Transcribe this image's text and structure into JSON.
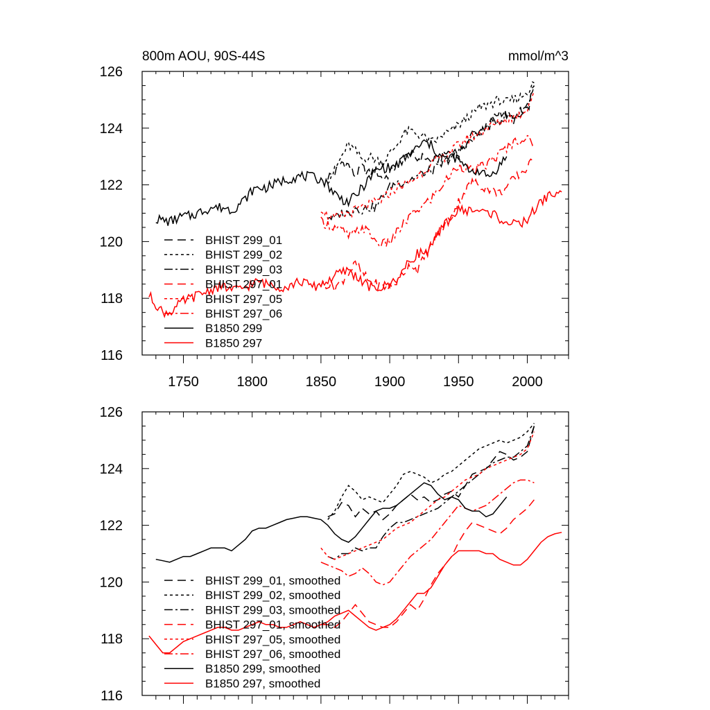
{
  "chart_data": [
    {
      "type": "line",
      "title": "800m AOU, 90S-44S",
      "units": "mmol/m^3",
      "xlim": [
        1720,
        2030
      ],
      "ylim": [
        116,
        126
      ],
      "xticks": [
        1750,
        1800,
        1850,
        1900,
        1950,
        2000
      ],
      "yticks": [
        116,
        118,
        120,
        122,
        124,
        126
      ],
      "xlabel": "",
      "ylabel": "",
      "legend_position": "bottom-left",
      "series": [
        {
          "name": "BHIST 299_01",
          "color": "#000000",
          "dash": "12,7",
          "x": [
            1855,
            1860,
            1865,
            1870,
            1875,
            1880,
            1885,
            1890,
            1895,
            1900,
            1905,
            1910,
            1915,
            1920,
            1925,
            1930,
            1935,
            1940,
            1945,
            1950,
            1955,
            1960,
            1965,
            1970,
            1975,
            1980,
            1985,
            1990,
            1995,
            2000,
            2005
          ],
          "y": [
            122.3,
            122.4,
            122.8,
            122.7,
            122.3,
            122.6,
            122.4,
            122.5,
            122.2,
            122.4,
            122.7,
            122.9,
            123.1,
            122.9,
            123.0,
            122.8,
            122.9,
            123.1,
            123.2,
            123.0,
            123.4,
            123.8,
            123.9,
            124.0,
            124.3,
            124.6,
            124.5,
            124.3,
            124.4,
            124.6,
            125.5
          ]
        },
        {
          "name": "BHIST 299_02",
          "color": "#000000",
          "dash": "4,4",
          "x": [
            1855,
            1860,
            1865,
            1870,
            1875,
            1880,
            1885,
            1890,
            1895,
            1900,
            1905,
            1910,
            1915,
            1920,
            1925,
            1930,
            1935,
            1940,
            1945,
            1950,
            1955,
            1960,
            1965,
            1970,
            1975,
            1980,
            1985,
            1990,
            1995,
            2000,
            2005
          ],
          "y": [
            122.2,
            122.5,
            123.0,
            123.4,
            123.2,
            122.9,
            123.0,
            122.9,
            122.8,
            123.1,
            123.4,
            123.8,
            123.9,
            123.8,
            123.7,
            123.5,
            123.6,
            123.8,
            123.9,
            124.1,
            124.3,
            124.5,
            124.7,
            124.8,
            124.9,
            125.0,
            124.9,
            125.0,
            125.1,
            125.3,
            125.6
          ]
        },
        {
          "name": "BHIST 299_03",
          "color": "#000000",
          "dash": "12,4,3,4",
          "x": [
            1855,
            1860,
            1865,
            1870,
            1875,
            1880,
            1885,
            1890,
            1895,
            1900,
            1905,
            1910,
            1915,
            1920,
            1925,
            1930,
            1935,
            1940,
            1945,
            1950,
            1955,
            1960,
            1965,
            1970,
            1975,
            1980,
            1985,
            1990,
            1995,
            2000,
            2005
          ],
          "y": [
            120.9,
            120.8,
            121.0,
            121.0,
            121.2,
            121.1,
            121.2,
            121.2,
            121.6,
            121.9,
            122.1,
            122.1,
            122.2,
            122.3,
            122.4,
            122.5,
            122.6,
            122.8,
            123.0,
            123.2,
            123.4,
            123.6,
            123.8,
            124.0,
            124.2,
            124.3,
            124.4,
            124.4,
            124.6,
            124.8,
            125.5
          ]
        },
        {
          "name": "BHIST 297_01",
          "color": "#ff0000",
          "dash": "12,7",
          "x": [
            1850,
            1855,
            1860,
            1865,
            1870,
            1875,
            1880,
            1885,
            1890,
            1895,
            1900,
            1905,
            1910,
            1915,
            1920,
            1925,
            1930,
            1935,
            1940,
            1945,
            1950,
            1955,
            1960,
            1965,
            1970,
            1975,
            1980,
            1985,
            1990,
            1995,
            2000,
            2005
          ],
          "y": [
            118.5,
            118.5,
            118.4,
            118.6,
            118.9,
            119.2,
            118.9,
            118.6,
            118.5,
            118.4,
            118.4,
            118.6,
            118.9,
            119.2,
            119.0,
            119.4,
            119.9,
            120.3,
            120.6,
            120.9,
            121.4,
            121.8,
            122.1,
            122.0,
            121.9,
            121.8,
            121.7,
            121.9,
            122.2,
            122.4,
            122.6,
            122.9
          ]
        },
        {
          "name": "BHIST 297_05",
          "color": "#ff0000",
          "dash": "4,4",
          "x": [
            1850,
            1855,
            1860,
            1865,
            1870,
            1875,
            1880,
            1885,
            1890,
            1895,
            1900,
            1905,
            1910,
            1915,
            1920,
            1925,
            1930,
            1935,
            1940,
            1945,
            1950,
            1955,
            1960,
            1965,
            1970,
            1975,
            1980,
            1985,
            1990,
            1995,
            2000,
            2005
          ],
          "y": [
            121.2,
            120.9,
            120.8,
            120.9,
            121.0,
            121.1,
            121.2,
            121.3,
            121.4,
            121.5,
            121.7,
            121.9,
            122.0,
            122.1,
            122.3,
            122.5,
            122.7,
            122.9,
            123.0,
            123.2,
            123.4,
            123.6,
            123.7,
            123.8,
            124.0,
            124.1,
            124.2,
            124.3,
            124.4,
            124.5,
            124.7,
            125.3
          ]
        },
        {
          "name": "BHIST 297_06",
          "color": "#ff0000",
          "dash": "12,4,3,4",
          "x": [
            1850,
            1855,
            1860,
            1865,
            1870,
            1875,
            1880,
            1885,
            1890,
            1895,
            1900,
            1905,
            1910,
            1915,
            1920,
            1925,
            1930,
            1935,
            1940,
            1945,
            1950,
            1955,
            1960,
            1965,
            1970,
            1975,
            1980,
            1985,
            1990,
            1995,
            2000,
            2005
          ],
          "y": [
            120.7,
            120.6,
            120.5,
            120.4,
            120.2,
            120.3,
            120.5,
            120.3,
            120.0,
            119.9,
            120.0,
            120.3,
            120.6,
            120.9,
            121.1,
            121.3,
            121.5,
            121.8,
            122.1,
            122.4,
            122.7,
            122.6,
            122.5,
            122.6,
            122.7,
            122.9,
            123.1,
            123.3,
            123.5,
            123.6,
            123.6,
            123.5
          ]
        },
        {
          "name": "B1850 299",
          "color": "#000000",
          "dash": "",
          "x": [
            1730,
            1735,
            1740,
            1745,
            1750,
            1755,
            1760,
            1765,
            1770,
            1775,
            1780,
            1785,
            1790,
            1795,
            1800,
            1805,
            1810,
            1815,
            1820,
            1825,
            1830,
            1835,
            1840,
            1845,
            1850,
            1855,
            1860,
            1865,
            1870,
            1875,
            1880,
            1885,
            1890,
            1895,
            1900,
            1905,
            1910,
            1915,
            1920,
            1925,
            1930,
            1935,
            1940,
            1945,
            1950,
            1955,
            1960,
            1965,
            1970,
            1975,
            1980,
            1985
          ],
          "y": [
            120.8,
            120.75,
            120.7,
            120.8,
            120.9,
            120.9,
            121.0,
            121.1,
            121.2,
            121.2,
            121.2,
            121.1,
            121.3,
            121.5,
            121.8,
            121.9,
            121.9,
            122.0,
            122.1,
            122.2,
            122.25,
            122.3,
            122.3,
            122.25,
            122.2,
            122.0,
            121.7,
            121.5,
            121.4,
            121.6,
            121.9,
            122.2,
            122.5,
            122.6,
            122.6,
            122.7,
            122.9,
            123.1,
            123.3,
            123.5,
            123.4,
            123.1,
            122.9,
            123.0,
            122.9,
            122.6,
            122.5,
            122.5,
            122.3,
            122.4,
            122.7,
            123.0
          ]
        },
        {
          "name": "B1850 297",
          "color": "#ff0000",
          "dash": "",
          "x": [
            1725,
            1730,
            1735,
            1740,
            1745,
            1750,
            1755,
            1760,
            1765,
            1770,
            1775,
            1780,
            1785,
            1790,
            1795,
            1800,
            1805,
            1810,
            1815,
            1820,
            1825,
            1830,
            1835,
            1840,
            1845,
            1850,
            1855,
            1860,
            1865,
            1870,
            1875,
            1880,
            1885,
            1890,
            1895,
            1900,
            1905,
            1910,
            1915,
            1920,
            1925,
            1930,
            1935,
            1940,
            1945,
            1950,
            1955,
            1960,
            1965,
            1970,
            1975,
            1980,
            1985,
            1990,
            1995,
            2000,
            2005,
            2010,
            2015,
            2020,
            2025
          ],
          "y": [
            118.1,
            117.8,
            117.5,
            117.5,
            117.7,
            117.9,
            118.0,
            118.1,
            118.2,
            118.3,
            118.4,
            118.4,
            118.3,
            118.3,
            118.4,
            118.5,
            118.6,
            118.5,
            118.5,
            118.4,
            118.4,
            118.5,
            118.6,
            118.5,
            118.4,
            118.5,
            118.6,
            118.8,
            118.9,
            119.0,
            118.8,
            118.6,
            118.4,
            118.3,
            118.4,
            118.5,
            118.7,
            119.0,
            119.3,
            119.6,
            119.6,
            119.8,
            120.2,
            120.6,
            120.9,
            121.1,
            121.1,
            121.1,
            121.1,
            121.0,
            121.0,
            120.8,
            120.7,
            120.6,
            120.6,
            120.8,
            121.1,
            121.4,
            121.6,
            121.7,
            121.75
          ]
        }
      ]
    },
    {
      "type": "line",
      "title": "",
      "xlim": [
        1720,
        2030
      ],
      "ylim": [
        116,
        126
      ],
      "yticks": [
        116,
        118,
        120,
        122,
        124,
        126
      ],
      "xlabel": "",
      "ylabel": "",
      "legend_position": "bottom-left",
      "series": [
        {
          "name": "BHIST 299_01, smoothed"
        },
        {
          "name": "BHIST 299_02, smoothed"
        },
        {
          "name": "BHIST 299_03, smoothed"
        },
        {
          "name": "BHIST 297_01, smoothed"
        },
        {
          "name": "BHIST 297_05, smoothed"
        },
        {
          "name": "BHIST 297_06, smoothed"
        },
        {
          "name": "B1850 299, smoothed"
        },
        {
          "name": "B1850 297, smoothed"
        }
      ]
    }
  ]
}
